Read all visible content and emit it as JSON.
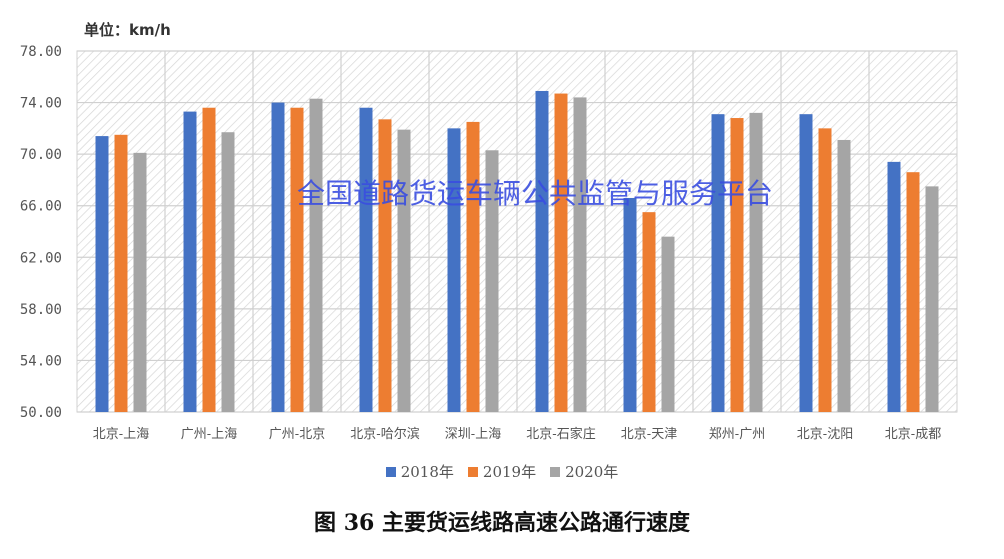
{
  "chart_data": {
    "type": "bar",
    "title": "图 36 主要货运线路高速公路通行速度",
    "unit_label": "单位：km/h",
    "watermark": "全国道路货运车辆公共监管与服务平台",
    "categories": [
      "北京-上海",
      "广州-上海",
      "广州-北京",
      "北京-哈尔滨",
      "深圳-上海",
      "北京-石家庄",
      "北京-天津",
      "郑州-广州",
      "北京-沈阳",
      "北京-成都"
    ],
    "series": [
      {
        "name": "2018年",
        "color": "#4472C4",
        "values": [
          71.4,
          73.3,
          74.0,
          73.6,
          72.0,
          74.9,
          66.6,
          73.1,
          73.1,
          69.4
        ]
      },
      {
        "name": "2019年",
        "color": "#ED7D31",
        "values": [
          71.5,
          73.6,
          73.6,
          72.7,
          72.5,
          74.7,
          65.5,
          72.8,
          72.0,
          68.6
        ]
      },
      {
        "name": "2020年",
        "color": "#A5A5A5",
        "values": [
          70.1,
          71.7,
          74.3,
          71.9,
          70.3,
          74.4,
          63.6,
          73.2,
          71.1,
          67.5
        ]
      }
    ],
    "ylim": [
      50,
      78
    ],
    "yticks": [
      "50.00",
      "54.00",
      "58.00",
      "62.00",
      "66.00",
      "70.00",
      "74.00",
      "78.00"
    ],
    "grid": true,
    "legend_position": "bottom"
  }
}
